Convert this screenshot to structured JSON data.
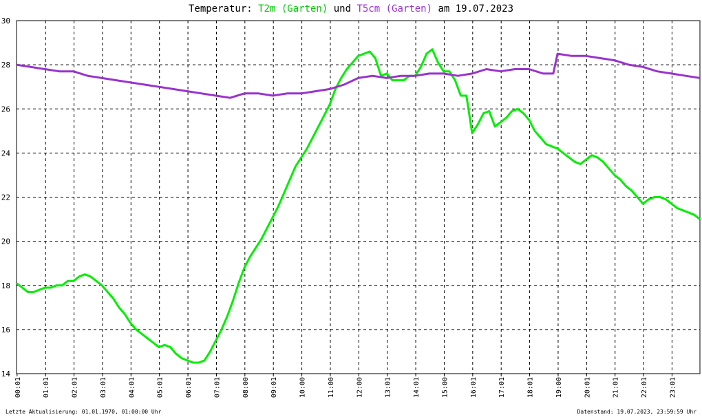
{
  "title": {
    "prefix": "Temperatur: ",
    "series1": "T2m (Garten)",
    "mid": " und ",
    "series2": "T5cm (Garten)",
    "suffix": " am 19.07.2023"
  },
  "footer": {
    "left": "Letzte Aktualisierung: 01.01.1970, 01:00:00 Uhr",
    "right": "Datenstand: 19.07.2023, 23:59:59 Uhr"
  },
  "colors": {
    "t2m": "#00ee00",
    "t5cm": "#9933cc",
    "grid": "#000000",
    "background": "#ffffff"
  },
  "chart_data": {
    "type": "line",
    "title": "Temperatur: T2m (Garten) und T5cm (Garten) am 19.07.2023",
    "xlabel": "",
    "ylabel": "",
    "xlim": [
      0,
      24
    ],
    "ylim": [
      14,
      30
    ],
    "yticks": [
      14,
      16,
      18,
      20,
      22,
      24,
      26,
      28,
      30
    ],
    "xtick_labels": [
      "00:01",
      "01:01",
      "02:01",
      "03:01",
      "04:01",
      "05:01",
      "06:01",
      "07:01",
      "08:00",
      "09:01",
      "10:00",
      "11:00",
      "12:00",
      "13:01",
      "14:01",
      "15:00",
      "16:01",
      "17:01",
      "18:01",
      "19:00",
      "20:01",
      "21:01",
      "22:01",
      "23:01"
    ],
    "grid": true,
    "series": [
      {
        "name": "T2m (Garten)",
        "color": "#00ee00",
        "x": [
          0,
          0.2,
          0.4,
          0.6,
          0.8,
          1.0,
          1.2,
          1.4,
          1.6,
          1.8,
          2.0,
          2.2,
          2.4,
          2.6,
          2.8,
          3.0,
          3.2,
          3.4,
          3.6,
          3.8,
          4.0,
          4.2,
          4.4,
          4.6,
          4.8,
          5.0,
          5.2,
          5.4,
          5.6,
          5.8,
          6.0,
          6.2,
          6.4,
          6.6,
          6.8,
          7.0,
          7.2,
          7.4,
          7.6,
          7.8,
          8.0,
          8.2,
          8.4,
          8.6,
          8.8,
          9.0,
          9.2,
          9.4,
          9.6,
          9.8,
          10.0,
          10.2,
          10.4,
          10.6,
          10.8,
          11.0,
          11.2,
          11.4,
          11.6,
          11.8,
          12.0,
          12.2,
          12.4,
          12.6,
          12.8,
          13.0,
          13.2,
          13.4,
          13.6,
          13.8,
          14.0,
          14.2,
          14.4,
          14.6,
          14.8,
          15.0,
          15.2,
          15.4,
          15.6,
          15.8,
          16.0,
          16.2,
          16.4,
          16.6,
          16.8,
          17.0,
          17.2,
          17.4,
          17.6,
          17.8,
          18.0,
          18.2,
          18.4,
          18.6,
          18.8,
          19.0,
          19.2,
          19.4,
          19.6,
          19.8,
          20.0,
          20.2,
          20.4,
          20.6,
          20.8,
          21.0,
          21.2,
          21.4,
          21.6,
          21.8,
          22.0,
          22.2,
          22.4,
          22.6,
          22.8,
          23.0,
          23.2,
          23.4,
          23.6,
          23.8,
          24.0
        ],
        "values": [
          18.1,
          17.9,
          17.7,
          17.7,
          17.8,
          17.9,
          17.9,
          18.0,
          18.0,
          18.2,
          18.2,
          18.4,
          18.5,
          18.4,
          18.2,
          18.0,
          17.7,
          17.4,
          17.0,
          16.7,
          16.3,
          16.0,
          15.8,
          15.6,
          15.4,
          15.2,
          15.3,
          15.2,
          14.9,
          14.7,
          14.6,
          14.5,
          14.5,
          14.6,
          15.0,
          15.5,
          16.0,
          16.6,
          17.3,
          18.1,
          18.8,
          19.3,
          19.7,
          20.1,
          20.6,
          21.1,
          21.6,
          22.2,
          22.8,
          23.4,
          23.8,
          24.2,
          24.7,
          25.2,
          25.7,
          26.2,
          26.9,
          27.4,
          27.8,
          28.1,
          28.4,
          28.5,
          28.6,
          28.3,
          27.5,
          27.6,
          27.3,
          27.3,
          27.3,
          27.5,
          27.5,
          27.9,
          28.5,
          28.7,
          28.1,
          27.7,
          27.7,
          27.3,
          26.6,
          26.6,
          24.9,
          25.3,
          25.8,
          25.9,
          25.2,
          25.4,
          25.6,
          25.9,
          26.0,
          25.8,
          25.5,
          25.0,
          24.7,
          24.4,
          24.3,
          24.2,
          24.0,
          23.8,
          23.6,
          23.5,
          23.7,
          23.9,
          23.8,
          23.6,
          23.3,
          23.0,
          22.8,
          22.5,
          22.3,
          22.0,
          21.7,
          21.9,
          22.0,
          22.0,
          21.9,
          21.7,
          21.5,
          21.4,
          21.3,
          21.2,
          21.0
        ]
      },
      {
        "name": "T5cm (Garten)",
        "color": "#9933cc",
        "x": [
          0,
          0.5,
          1.0,
          1.5,
          2.0,
          2.5,
          3.0,
          3.5,
          4.0,
          4.5,
          5.0,
          5.5,
          6.0,
          6.5,
          7.0,
          7.5,
          8.0,
          8.5,
          9.0,
          9.5,
          10.0,
          10.5,
          11.0,
          11.5,
          12.0,
          12.5,
          13.0,
          13.5,
          14.0,
          14.5,
          15.0,
          15.5,
          16.0,
          16.5,
          17.0,
          17.5,
          18.0,
          18.5,
          18.85,
          19.0,
          19.5,
          20.0,
          20.5,
          21.0,
          21.5,
          22.0,
          22.5,
          23.0,
          23.5,
          24.0
        ],
        "values": [
          28.0,
          27.9,
          27.8,
          27.7,
          27.7,
          27.5,
          27.4,
          27.3,
          27.2,
          27.1,
          27.0,
          26.9,
          26.8,
          26.7,
          26.6,
          26.5,
          26.7,
          26.7,
          26.6,
          26.7,
          26.7,
          26.8,
          26.9,
          27.1,
          27.4,
          27.5,
          27.4,
          27.5,
          27.5,
          27.6,
          27.6,
          27.5,
          27.6,
          27.8,
          27.7,
          27.8,
          27.8,
          27.6,
          27.6,
          28.5,
          28.4,
          28.4,
          28.3,
          28.2,
          28.0,
          27.9,
          27.7,
          27.6,
          27.5,
          27.4
        ]
      }
    ]
  }
}
